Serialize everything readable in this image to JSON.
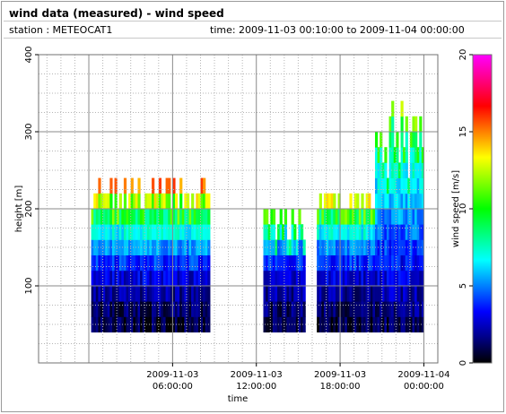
{
  "header": {
    "title": "wind data (measured) - wind speed",
    "station": "station : METEOCAT1",
    "time_range": "time: 2009-11-03 00:10:00 to 2009-11-04 00:00:00"
  },
  "chart_data": {
    "type": "heatmap",
    "title": "wind data (measured) - wind speed",
    "xlabel": "time",
    "ylabel": "height [m]",
    "colorbar_label": "wind speed [m/s]",
    "x_range_hours": [
      -3.6,
      25.0
    ],
    "ylim": [
      0,
      400
    ],
    "y_ticks": [
      100,
      200,
      300,
      400
    ],
    "x_ticks": [
      {
        "hour": 6,
        "line1": "2009-11-03",
        "line2": "06:00:00"
      },
      {
        "hour": 12,
        "line1": "2009-11-03",
        "line2": "12:00:00"
      },
      {
        "hour": 18,
        "line1": "2009-11-03",
        "line2": "18:00:00"
      },
      {
        "hour": 24,
        "line1": "2009-11-04",
        "line2": "00:00:00"
      }
    ],
    "colorbar_range": [
      0,
      20
    ],
    "colorbar_ticks": [
      0,
      5,
      10,
      15,
      20
    ],
    "colorbar_stops": [
      "#000000",
      "#000088",
      "#0000ff",
      "#0080ff",
      "#00ffff",
      "#00ff80",
      "#00ff00",
      "#80ff00",
      "#ffff00",
      "#ff8000",
      "#ff0000",
      "#ff0080",
      "#ff00ff"
    ],
    "grid": true,
    "data_gaps_hours": [
      [
        8.6,
        12.5
      ],
      [
        15.4,
        16.3
      ]
    ],
    "height_levels_m": [
      40,
      60,
      80,
      100,
      120,
      140,
      160,
      180,
      200,
      220,
      240,
      260,
      280,
      300,
      320,
      340
    ],
    "profile_summary": [
      {
        "period": "00:10-08:30",
        "top_height_m": 220,
        "speed_at_40m": 1,
        "speed_at_100m": 4.5,
        "speed_at_200m": 12.5
      },
      {
        "period": "12:30-15:20",
        "top_height_m": 190,
        "speed_at_40m": 1,
        "speed_at_100m": 5,
        "speed_at_200m": 13
      },
      {
        "period": "16:20-20:30",
        "top_height_m": 210,
        "speed_at_40m": 1,
        "speed_at_100m": 5,
        "speed_at_200m": 12.5
      },
      {
        "period": "20:30-24:00",
        "top_height_m": 330,
        "speed_at_40m": 1.5,
        "speed_at_100m": 6,
        "speed_at_200m": 9,
        "speed_at_300m": 12
      }
    ]
  }
}
